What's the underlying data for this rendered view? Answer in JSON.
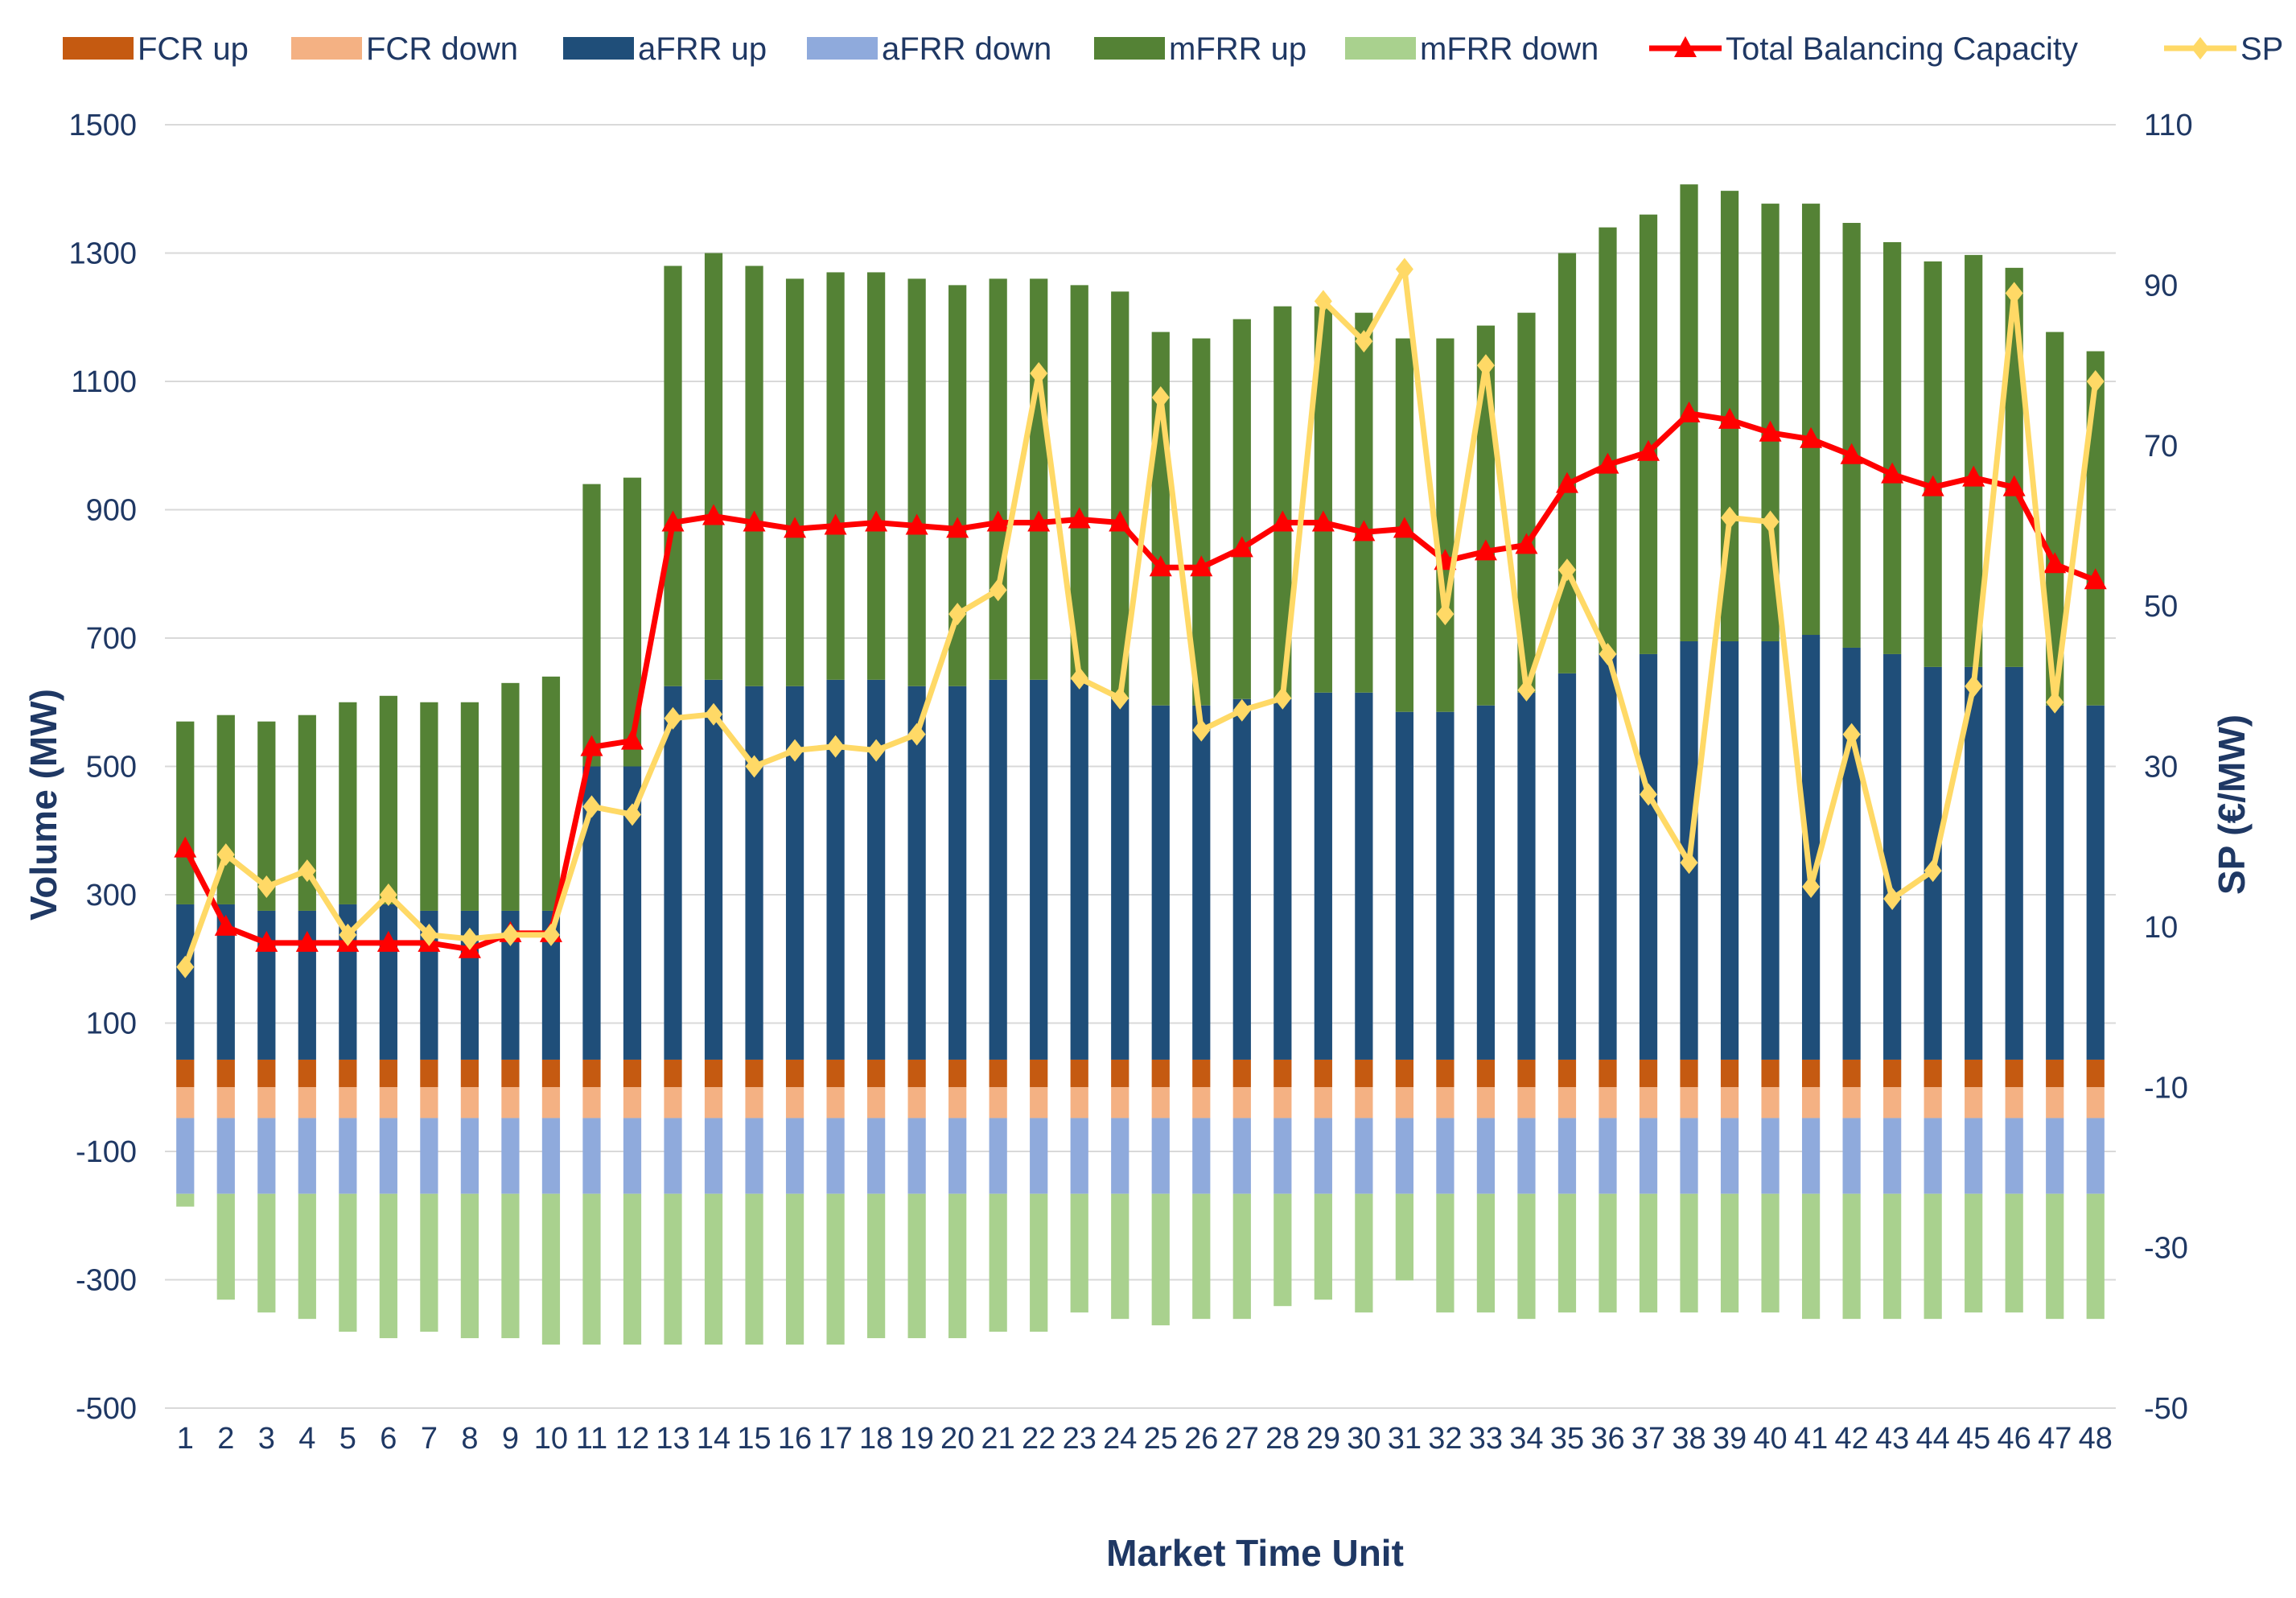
{
  "chart_data": {
    "type": "bar",
    "title": "",
    "xlabel": "Market Time Unit",
    "ylabel": "Volume (MW)",
    "y2label": "SP (€/MW)",
    "ylim": [
      -500,
      1500
    ],
    "y2lim": [
      -50,
      110
    ],
    "yticks": [
      -500,
      -300,
      -100,
      100,
      300,
      500,
      700,
      900,
      1100,
      1300,
      1500
    ],
    "y2ticks": [
      -50,
      -30,
      -10,
      10,
      30,
      50,
      70,
      90,
      110
    ],
    "grid": true,
    "legend_position": "top",
    "categories": [
      "1",
      "2",
      "3",
      "4",
      "5",
      "6",
      "7",
      "8",
      "9",
      "10",
      "11",
      "12",
      "13",
      "14",
      "15",
      "16",
      "17",
      "18",
      "19",
      "20",
      "21",
      "22",
      "23",
      "24",
      "25",
      "26",
      "27",
      "28",
      "29",
      "30",
      "31",
      "32",
      "33",
      "34",
      "35",
      "36",
      "37",
      "38",
      "39",
      "40",
      "41",
      "42",
      "43",
      "44",
      "45",
      "46",
      "47",
      "48"
    ],
    "stacked_up": [
      {
        "name": "FCR up",
        "color": "#c55a11",
        "values": [
          43,
          43,
          43,
          43,
          43,
          43,
          43,
          43,
          43,
          43,
          43,
          43,
          43,
          43,
          43,
          43,
          43,
          43,
          43,
          43,
          43,
          43,
          43,
          43,
          43,
          43,
          43,
          43,
          43,
          43,
          43,
          43,
          43,
          43,
          43,
          43,
          43,
          43,
          43,
          43,
          43,
          43,
          43,
          43,
          43,
          43,
          43,
          43
        ]
      },
      {
        "name": "aFRR up",
        "color": "#1f4e79",
        "values": [
          242,
          242,
          232,
          232,
          242,
          242,
          232,
          232,
          232,
          232,
          457,
          457,
          582,
          592,
          582,
          582,
          592,
          592,
          582,
          582,
          592,
          592,
          592,
          562,
          552,
          552,
          562,
          562,
          572,
          572,
          542,
          542,
          552,
          572,
          602,
          632,
          632,
          652,
          652,
          652,
          662,
          642,
          632,
          612,
          612,
          612,
          552,
          552
        ]
      },
      {
        "name": "mFRR up",
        "color": "#548235",
        "values": [
          285,
          295,
          295,
          305,
          315,
          325,
          325,
          325,
          355,
          365,
          440,
          450,
          655,
          665,
          655,
          635,
          635,
          635,
          635,
          625,
          625,
          625,
          615,
          635,
          582,
          572,
          592,
          612,
          602,
          592,
          582,
          582,
          592,
          592,
          655,
          665,
          685,
          712,
          702,
          682,
          672,
          662,
          642,
          632,
          642,
          622,
          582,
          552
        ]
      }
    ],
    "stacked_down": [
      {
        "name": "FCR down",
        "color": "#f4b183",
        "values": [
          -48,
          -48,
          -48,
          -48,
          -48,
          -48,
          -48,
          -48,
          -48,
          -48,
          -48,
          -48,
          -48,
          -48,
          -48,
          -48,
          -48,
          -48,
          -48,
          -48,
          -48,
          -48,
          -48,
          -48,
          -48,
          -48,
          -48,
          -48,
          -48,
          -48,
          -48,
          -48,
          -48,
          -48,
          -48,
          -48,
          -48,
          -48,
          -48,
          -48,
          -48,
          -48,
          -48,
          -48,
          -48,
          -48,
          -48,
          -48
        ]
      },
      {
        "name": "aFRR down",
        "color": "#8faadc",
        "values": [
          -118,
          -118,
          -118,
          -118,
          -118,
          -118,
          -118,
          -118,
          -118,
          -118,
          -118,
          -118,
          -118,
          -118,
          -118,
          -118,
          -118,
          -118,
          -118,
          -118,
          -118,
          -118,
          -118,
          -118,
          -118,
          -118,
          -118,
          -118,
          -118,
          -118,
          -118,
          -118,
          -118,
          -118,
          -118,
          -118,
          -118,
          -118,
          -118,
          -118,
          -118,
          -118,
          -118,
          -118,
          -118,
          -118,
          -118,
          -118
        ]
      },
      {
        "name": "mFRR down",
        "color": "#a9d18e",
        "values": [
          -20,
          -165,
          -185,
          -195,
          -215,
          -225,
          -215,
          -225,
          -225,
          -235,
          -235,
          -235,
          -235,
          -235,
          -235,
          -235,
          -235,
          -225,
          -225,
          -225,
          -215,
          -215,
          -185,
          -195,
          -205,
          -195,
          -195,
          -175,
          -165,
          -185,
          -135,
          -185,
          -185,
          -195,
          -185,
          -185,
          -185,
          -185,
          -185,
          -185,
          -195,
          -195,
          -195,
          -195,
          -185,
          -185,
          -195,
          -195
        ]
      }
    ],
    "series_lines": [
      {
        "name": "Total Balancing Capacity",
        "color": "#ff0000",
        "axis": "left",
        "marker": "triangle",
        "values": [
          372,
          250,
          225,
          225,
          225,
          225,
          225,
          215,
          240,
          240,
          530,
          540,
          880,
          890,
          880,
          870,
          875,
          880,
          875,
          870,
          880,
          880,
          885,
          880,
          810,
          810,
          840,
          880,
          880,
          865,
          870,
          820,
          835,
          845,
          940,
          970,
          990,
          1050,
          1040,
          1020,
          1010,
          985,
          955,
          935,
          950,
          935,
          815,
          790
        ]
      },
      {
        "name": "SP",
        "color": "#ffd966",
        "axis": "right",
        "marker": "diamond",
        "values": [
          5,
          19,
          15,
          17,
          9,
          14,
          9,
          8.5,
          9,
          9,
          25,
          24,
          36,
          36.5,
          30,
          32,
          32.5,
          32,
          34,
          49,
          52,
          79,
          41,
          38.5,
          76,
          34.5,
          37,
          38.5,
          88,
          83,
          92,
          49,
          80,
          39.5,
          54.5,
          44,
          26.5,
          18,
          61,
          60.5,
          15,
          34,
          13.5,
          17,
          40,
          89,
          38,
          78
        ]
      }
    ],
    "legend": [
      "FCR up",
      "FCR down",
      "aFRR up",
      "aFRR down",
      "mFRR up",
      "mFRR down",
      "Total Balancing Capacity",
      "SP"
    ]
  }
}
